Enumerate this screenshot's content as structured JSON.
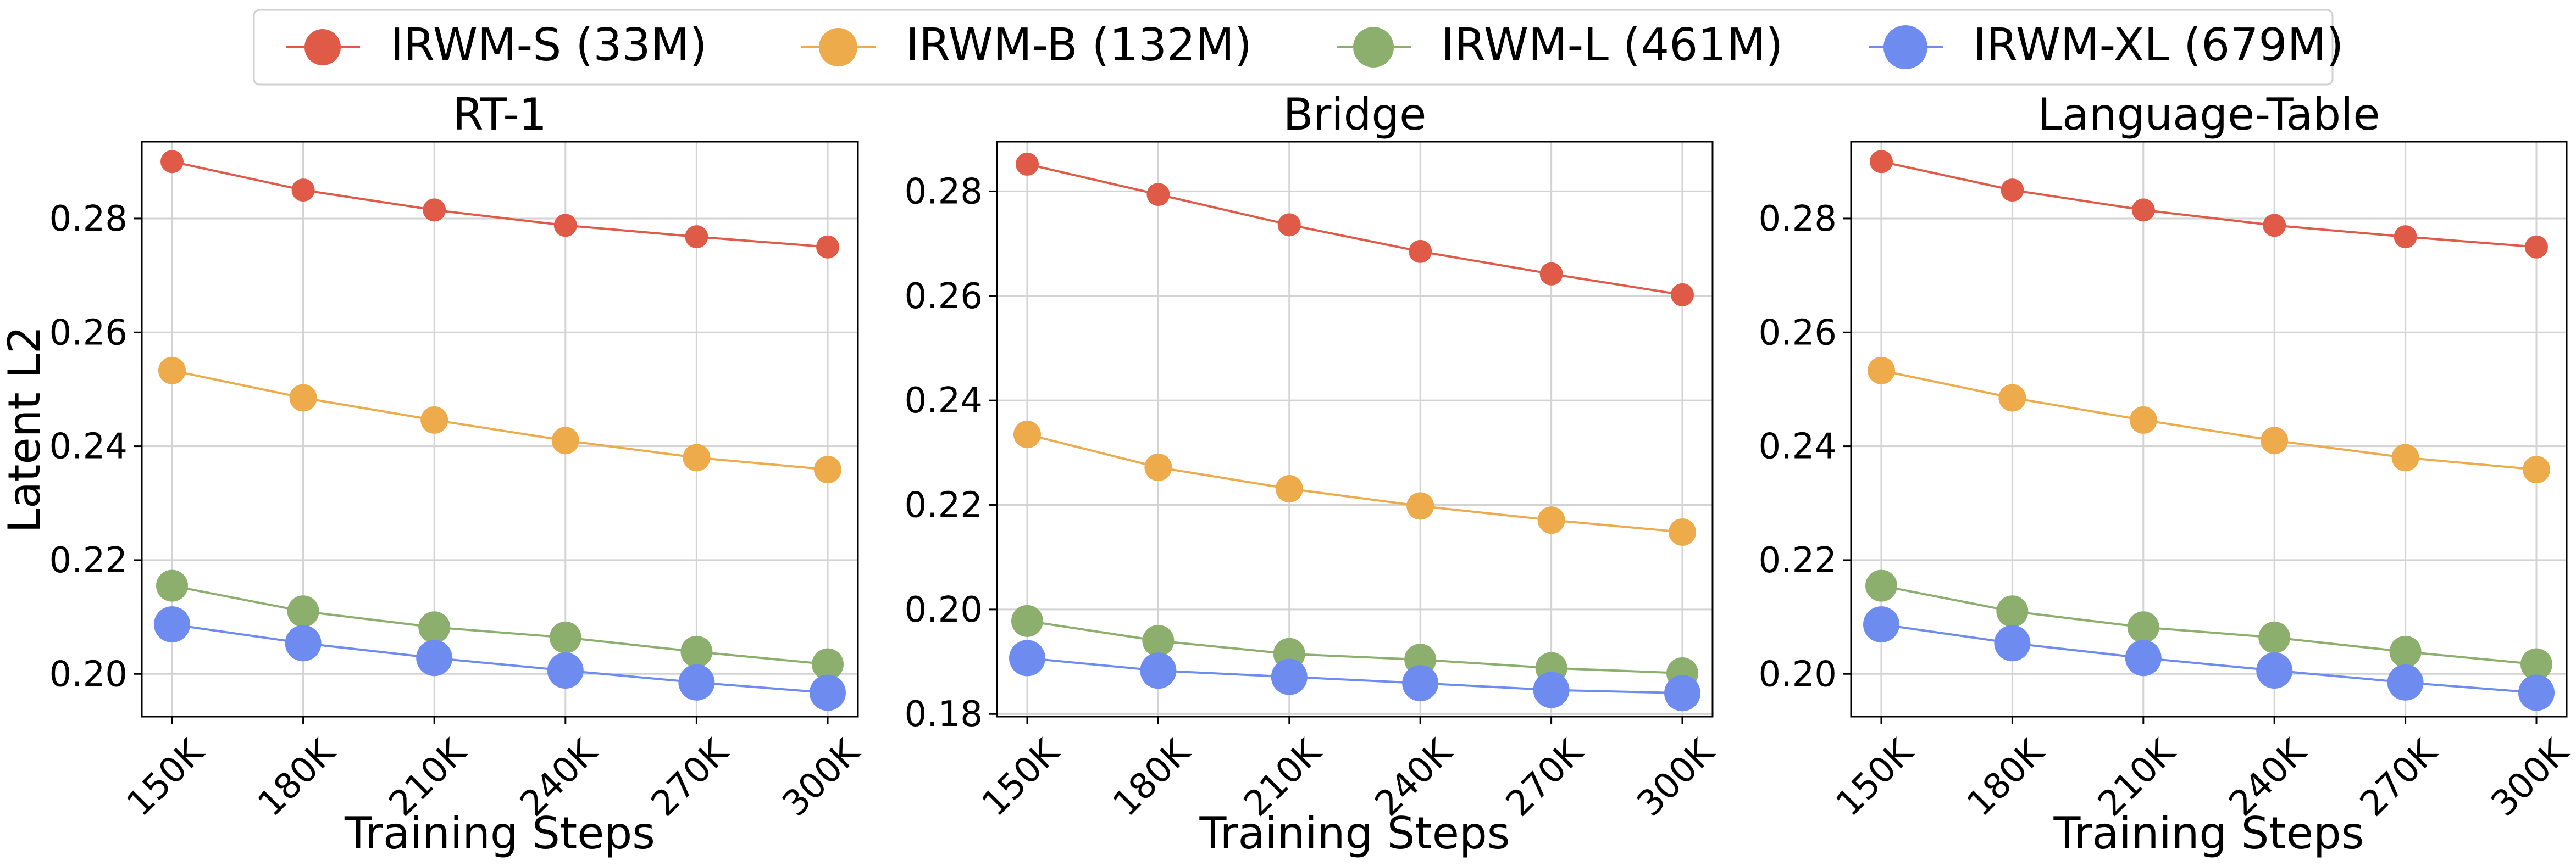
{
  "figure": {
    "ylabel": "Latent L2",
    "legend_position": "top-center"
  },
  "legend": [
    {
      "label": "IRWM-S (33M)",
      "color": "#e05a48"
    },
    {
      "label": "IRWM-B (132M)",
      "color": "#eeab4c"
    },
    {
      "label": "IRWM-L (461M)",
      "color": "#8caf6e"
    },
    {
      "label": "IRWM-XL (679M)",
      "color": "#6e8cf0"
    }
  ],
  "chart_data": [
    {
      "type": "line",
      "title": "RT-1",
      "xlabel": "Training Steps",
      "ylabel": "Latent L2",
      "categories": [
        "150K",
        "180K",
        "210K",
        "240K",
        "270K",
        "300K"
      ],
      "ylim": [
        0.1925,
        0.2935
      ],
      "yticks": [
        "0.20",
        "0.22",
        "0.24",
        "0.26",
        "0.28"
      ],
      "grid": true,
      "series": [
        {
          "name": "IRWM-S (33M)",
          "color": "#e05a48",
          "values": [
            0.29,
            0.285,
            0.2815,
            0.2788,
            0.2768,
            0.275
          ]
        },
        {
          "name": "IRWM-B (132M)",
          "color": "#eeab4c",
          "values": [
            0.2533,
            0.2485,
            0.2446,
            0.241,
            0.238,
            0.2359
          ]
        },
        {
          "name": "IRWM-L (461M)",
          "color": "#8caf6e",
          "values": [
            0.2155,
            0.211,
            0.2082,
            0.2064,
            0.2039,
            0.2017
          ]
        },
        {
          "name": "IRWM-XL (679M)",
          "color": "#6e8cf0",
          "values": [
            0.2087,
            0.2054,
            0.2028,
            0.2006,
            0.1985,
            0.1967
          ]
        }
      ]
    },
    {
      "type": "line",
      "title": "Bridge",
      "xlabel": "Training Steps",
      "ylabel": "",
      "categories": [
        "150K",
        "180K",
        "210K",
        "240K",
        "270K",
        "300K"
      ],
      "ylim": [
        0.1795,
        0.2895
      ],
      "yticks": [
        "0.18",
        "0.20",
        "0.22",
        "0.24",
        "0.26",
        "0.28"
      ],
      "grid": true,
      "series": [
        {
          "name": "IRWM-S (33M)",
          "color": "#e05a48",
          "values": [
            0.2852,
            0.2794,
            0.2736,
            0.2685,
            0.2642,
            0.2602
          ]
        },
        {
          "name": "IRWM-B (132M)",
          "color": "#eeab4c",
          "values": [
            0.2335,
            0.2272,
            0.2231,
            0.2198,
            0.2171,
            0.2148
          ]
        },
        {
          "name": "IRWM-L (461M)",
          "color": "#8caf6e",
          "values": [
            0.1978,
            0.194,
            0.1915,
            0.1904,
            0.1888,
            0.1878
          ]
        },
        {
          "name": "IRWM-XL (679M)",
          "color": "#6e8cf0",
          "values": [
            0.1907,
            0.1883,
            0.1871,
            0.1859,
            0.1846,
            0.184
          ]
        }
      ]
    },
    {
      "type": "line",
      "title": "Language-Table",
      "xlabel": "Training Steps",
      "ylabel": "",
      "categories": [
        "150K",
        "180K",
        "210K",
        "240K",
        "270K",
        "300K"
      ],
      "ylim": [
        0.1925,
        0.2935
      ],
      "yticks": [
        "0.20",
        "0.22",
        "0.24",
        "0.26",
        "0.28"
      ],
      "grid": true,
      "series": [
        {
          "name": "IRWM-S (33M)",
          "color": "#e05a48",
          "values": [
            0.29,
            0.285,
            0.2815,
            0.2788,
            0.2768,
            0.275
          ]
        },
        {
          "name": "IRWM-B (132M)",
          "color": "#eeab4c",
          "values": [
            0.2533,
            0.2485,
            0.2446,
            0.241,
            0.238,
            0.2359
          ]
        },
        {
          "name": "IRWM-L (461M)",
          "color": "#8caf6e",
          "values": [
            0.2155,
            0.211,
            0.2082,
            0.2064,
            0.2039,
            0.2017
          ]
        },
        {
          "name": "IRWM-XL (679M)",
          "color": "#6e8cf0",
          "values": [
            0.2087,
            0.2054,
            0.2028,
            0.2006,
            0.1985,
            0.1967
          ]
        }
      ]
    }
  ]
}
